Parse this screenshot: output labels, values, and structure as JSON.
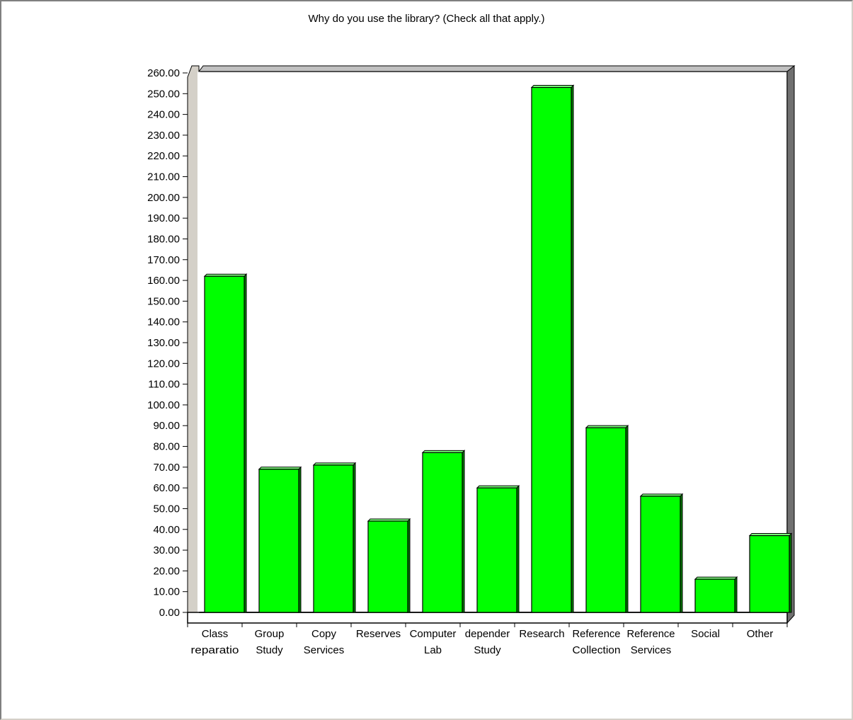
{
  "chart_data": {
    "type": "bar",
    "title": "Why do you use the library? (Check all that apply.)",
    "xlabel": "",
    "ylabel": "",
    "ylim": [
      0,
      260
    ],
    "ytick_step": 10,
    "grid": false,
    "legend": "none",
    "bar_color": "#00ff00",
    "categories": [
      [
        "Class",
        "reparatio"
      ],
      [
        "Group",
        "Study"
      ],
      [
        "Copy",
        "Services"
      ],
      [
        "Reserves"
      ],
      [
        "Computer",
        "Lab"
      ],
      [
        "depender",
        "Study"
      ],
      [
        "Research"
      ],
      [
        "Reference",
        "Collection"
      ],
      [
        "Reference",
        "Services"
      ],
      [
        "Social"
      ],
      [
        "Other"
      ]
    ],
    "values": [
      162,
      69,
      71,
      44,
      77,
      60,
      253,
      89,
      56,
      16,
      37
    ]
  }
}
